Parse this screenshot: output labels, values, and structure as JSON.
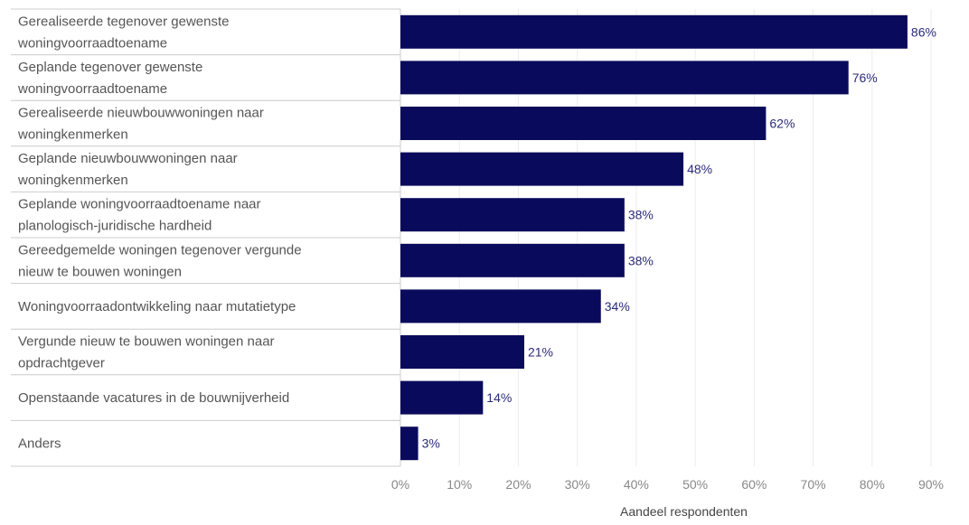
{
  "chart_data": {
    "type": "bar",
    "orientation": "horizontal",
    "categories": [
      [
        "Gerealiseerde tegenover gewenste",
        "woningvoorraadtoename"
      ],
      [
        "Geplande tegenover gewenste",
        "woningvoorraadtoename"
      ],
      [
        "Gerealiseerde nieuwbouwwoningen naar",
        "woningkenmerken"
      ],
      [
        "Geplande nieuwbouwwoningen naar",
        "woningkenmerken"
      ],
      [
        "Geplande woningvoorraadtoename naar",
        "planologisch-juridische hardheid"
      ],
      [
        "Gereedgemelde woningen tegenover vergunde",
        "nieuw te bouwen woningen"
      ],
      [
        "Woningvoorraadontwikkeling naar mutatietype"
      ],
      [
        "Vergunde nieuw te bouwen woningen naar",
        "opdrachtgever"
      ],
      [
        "Openstaande vacatures in de bouwnijverheid"
      ],
      [
        "Anders"
      ]
    ],
    "values": [
      86,
      76,
      62,
      48,
      38,
      38,
      34,
      21,
      14,
      3
    ],
    "value_labels": [
      "86%",
      "76%",
      "62%",
      "48%",
      "38%",
      "38%",
      "34%",
      "21%",
      "14%",
      "3%"
    ],
    "xlabel": "Aandeel respondenten",
    "xlim": [
      0,
      90
    ],
    "xticks": [
      0,
      10,
      20,
      30,
      40,
      50,
      60,
      70,
      80,
      90
    ],
    "xtick_labels": [
      "0%",
      "10%",
      "20%",
      "30%",
      "40%",
      "50%",
      "60%",
      "70%",
      "80%",
      "90%"
    ],
    "grid": true,
    "bar_color": "#0a0a5c",
    "label_color": "#2b2b7a"
  }
}
